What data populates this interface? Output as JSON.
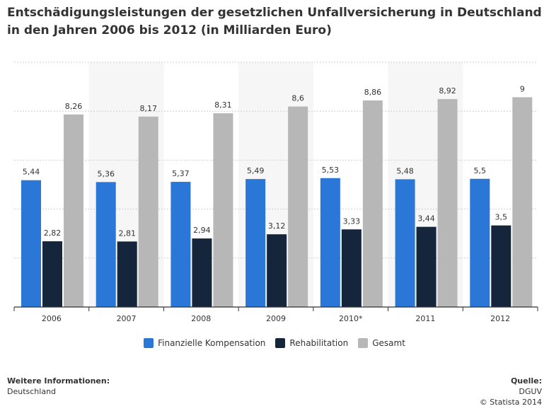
{
  "title": "Entschädigungsleistungen der gesetzlichen Unfallversicherung in Deutschland in den Jahren 2006 bis 2012 (in Milliarden Euro)",
  "colors": {
    "finanzielle": "#2a77d8",
    "rehabilitation": "#14253c",
    "gesamt": "#b7b7b7",
    "grid": "#cfcfcf",
    "band": "#f6f6f6",
    "axis": "#333333"
  },
  "chart_data": {
    "type": "bar",
    "categories": [
      "2006",
      "2007",
      "2008",
      "2009",
      "2010*",
      "2011",
      "2012"
    ],
    "series": [
      {
        "name": "Finanzielle Kompensation",
        "values": [
          5.44,
          5.36,
          5.37,
          5.49,
          5.53,
          5.48,
          5.5
        ],
        "labels": [
          "5,44",
          "5,36",
          "5,37",
          "5,49",
          "5,53",
          "5,48",
          "5,5"
        ]
      },
      {
        "name": "Rehabilitation",
        "values": [
          2.82,
          2.81,
          2.94,
          3.12,
          3.33,
          3.44,
          3.5
        ],
        "labels": [
          "2,82",
          "2,81",
          "2,94",
          "3,12",
          "3,33",
          "3,44",
          "3,5"
        ]
      },
      {
        "name": "Gesamt",
        "values": [
          8.26,
          8.17,
          8.31,
          8.6,
          8.86,
          8.92,
          9
        ],
        "labels": [
          "8,26",
          "8,17",
          "8,31",
          "8,6",
          "8,86",
          "8,92",
          "9"
        ]
      }
    ],
    "ylim": [
      0,
      10.5
    ],
    "grid": true,
    "legend_position": "bottom"
  },
  "footer": {
    "info_heading": "Weitere Informationen:",
    "info_text": "Deutschland",
    "source_heading": "Quelle:",
    "source_text": "DGUV",
    "copyright": "© Statista 2014"
  }
}
